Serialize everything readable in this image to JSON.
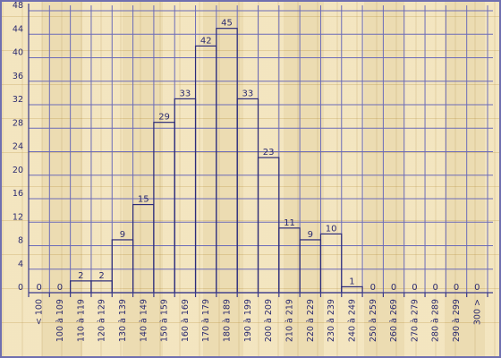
{
  "chart_data": {
    "type": "bar",
    "title": "",
    "xlabel": "",
    "ylabel": "",
    "categories": [
      "< 100",
      "100 à 109",
      "110 à 119",
      "120 à 129",
      "130 à 139",
      "140 à 149",
      "150 à 159",
      "160 à 169",
      "170 à 179",
      "180 à 189",
      "190 à 199",
      "200 à 209",
      "210 à 219",
      "220 à 229",
      "230 à 239",
      "240 à 249",
      "250 à 259",
      "260 à 269",
      "270 à 279",
      "280 à 289",
      "290 à 299",
      "300 >"
    ],
    "values": [
      0,
      0,
      2,
      2,
      9,
      15,
      29,
      33,
      42,
      45,
      33,
      23,
      11,
      9,
      10,
      1,
      0,
      0,
      0,
      0,
      0,
      0
    ],
    "yticks": [
      0,
      4,
      8,
      12,
      16,
      20,
      24,
      28,
      32,
      36,
      40,
      44,
      48
    ],
    "ylim": [
      0,
      48
    ],
    "grid": true,
    "legend": "none",
    "colors": {
      "bar_stroke": "#2b2b7a",
      "grid": "#6b6bb8",
      "text": "#2a2a70",
      "background": "#efdca9",
      "frame": "#6f6fb0"
    }
  }
}
